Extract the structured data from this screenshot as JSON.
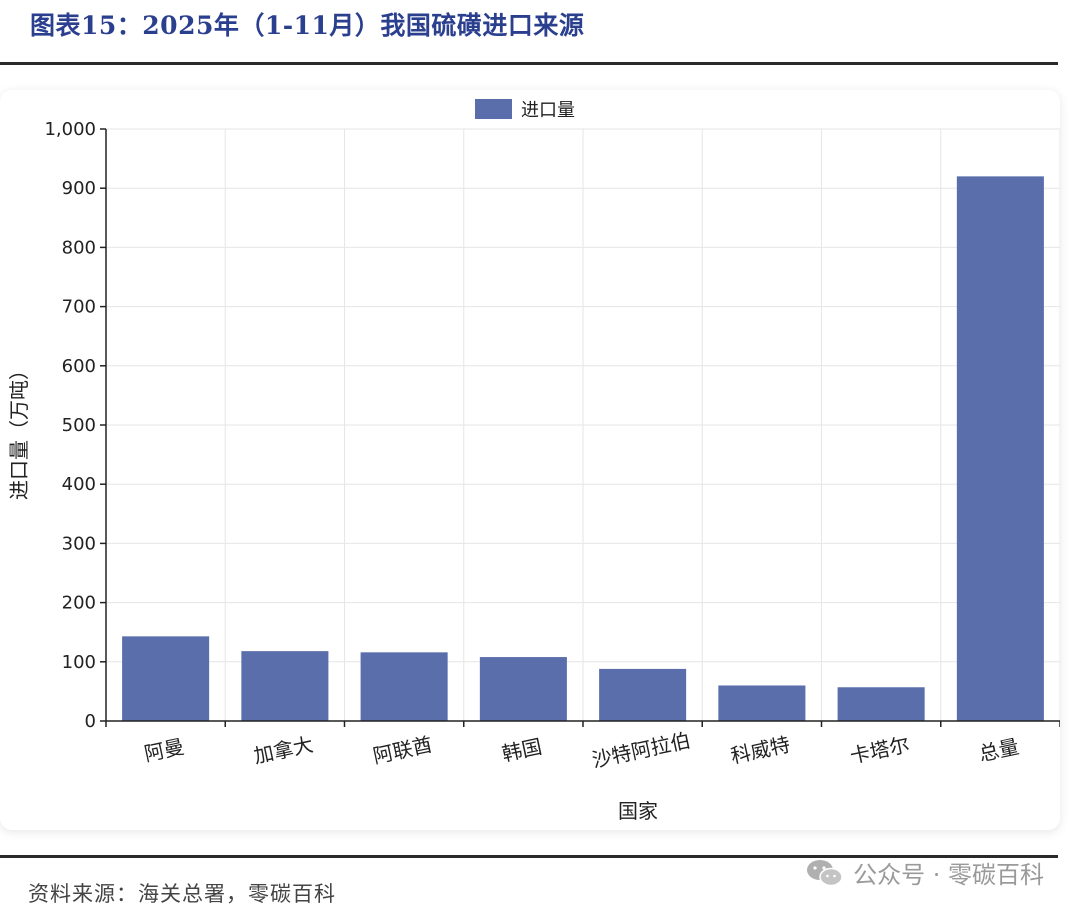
{
  "figure_title": "图表15：2025年（1-11月）我国硫磺进口来源",
  "source_note": "资料来源：海关总署，零碳百科",
  "watermark": {
    "text": "公众号 · 零碳百科",
    "icon": "wechat-icon"
  },
  "colors": {
    "bar": "#5a6eab",
    "title": "#2b3f8f",
    "grid": "#e6e6e6",
    "axis": "#222222"
  },
  "chart_data": {
    "type": "bar",
    "categories": [
      "阿曼",
      "加拿大",
      "阿联酋",
      "韩国",
      "沙特阿拉伯",
      "科威特",
      "卡塔尔",
      "总量"
    ],
    "series": [
      {
        "name": "进口量",
        "values": [
          143,
          118,
          116,
          108,
          88,
          60,
          57,
          920
        ]
      }
    ],
    "title": "",
    "xlabel": "国家",
    "ylabel": "进口量（万吨）",
    "ylim": [
      0,
      1000
    ],
    "yticks": [
      0,
      100,
      200,
      300,
      400,
      500,
      600,
      700,
      800,
      900,
      1000
    ],
    "ytick_labels": [
      "0",
      "100",
      "200",
      "300",
      "400",
      "500",
      "600",
      "700",
      "800",
      "900",
      "1,000"
    ],
    "grid": true,
    "legend": "top-center"
  }
}
